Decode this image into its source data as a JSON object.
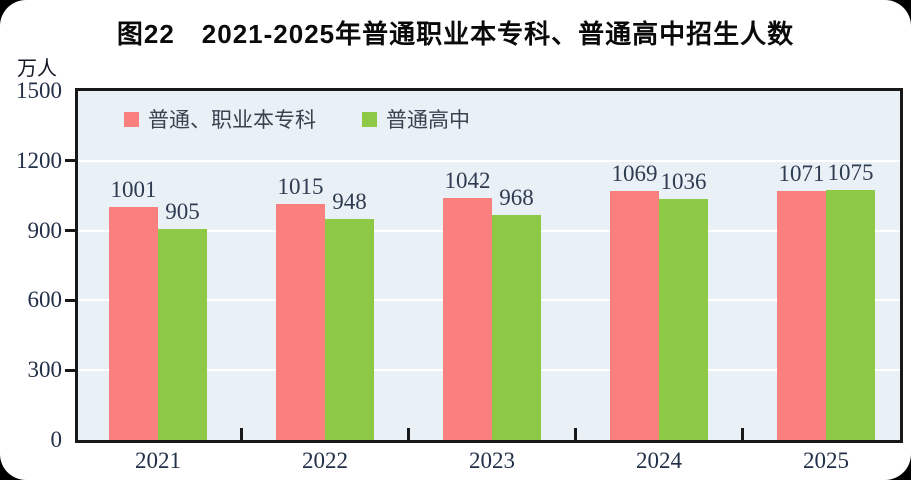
{
  "title": "图22　2021-2025年普通职业本专科、普通高中招生人数",
  "axis": {
    "unit_label": "万人",
    "y_ticks": [
      0,
      300,
      600,
      900,
      1200,
      1500
    ],
    "x_labels": [
      "2021",
      "2022",
      "2023",
      "2024",
      "2025"
    ]
  },
  "colors": {
    "series1": "#fa7f7f",
    "series2": "#8dc944",
    "plot_bg": "#e9f1f6",
    "plot_border": "#181818",
    "gridline": "#ffffff",
    "value_text": "#2e3b50",
    "axis_text": "#233049",
    "title_text": "#0a0a0a"
  },
  "chart_data": {
    "type": "bar",
    "title": "图22　2021-2025年普通职业本专科、普通高中招生人数",
    "unit": "万人",
    "categories": [
      "2021",
      "2022",
      "2023",
      "2024",
      "2025"
    ],
    "series": [
      {
        "name": "普通、职业本专科",
        "color": "#fa7f7f",
        "values": [
          1001,
          1015,
          1042,
          1069,
          1071
        ]
      },
      {
        "name": "普通高中",
        "color": "#8dc944",
        "values": [
          905,
          948,
          968,
          1036,
          1075
        ]
      }
    ],
    "ylim": [
      0,
      1500
    ],
    "yticks": [
      0,
      300,
      600,
      900,
      1200,
      1500
    ],
    "grid": true,
    "gridline_color": "#ffffff",
    "plot_background": "#e9f1f6",
    "legend_position": "top-left-inside"
  }
}
